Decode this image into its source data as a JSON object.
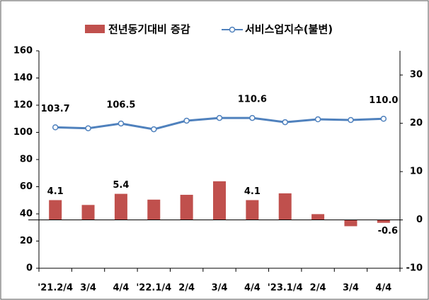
{
  "chart_data": {
    "type": "bar-line",
    "categories": [
      "'21.2/4",
      "3/4",
      "4/4",
      "'22.1/4",
      "2/4",
      "3/4",
      "4/4",
      "'23.1/4",
      "2/4",
      "3/4",
      "4/4"
    ],
    "series": [
      {
        "name": "전년동기대비 증감",
        "color": "#c0504d",
        "type": "bar",
        "axis": "y2",
        "values": [
          4.1,
          3.1,
          5.4,
          4.2,
          5.2,
          8.0,
          4.1,
          5.5,
          1.2,
          -1.3,
          -0.6
        ],
        "value_labels": [
          "4.1",
          null,
          "5.4",
          null,
          null,
          null,
          "4.1",
          null,
          null,
          null,
          "-0.6"
        ]
      },
      {
        "name": "서비스업지수(불변)",
        "color": "#4f81bd",
        "type": "line",
        "values": [
          103.7,
          103.0,
          106.5,
          102.3,
          108.6,
          110.6,
          110.6,
          107.5,
          109.6,
          109.1,
          110.0
        ],
        "value_labels": [
          "103.7",
          null,
          "106.5",
          null,
          null,
          null,
          "110.6",
          null,
          null,
          null,
          "110.0"
        ]
      }
    ],
    "ylim": [
      0,
      160
    ],
    "yticks": [
      0,
      20,
      40,
      60,
      80,
      100,
      120,
      140,
      160
    ],
    "y2lim": [
      -10,
      35
    ],
    "y2ticks": [
      -10,
      0,
      10,
      20,
      30
    ],
    "grid": false,
    "legend": "top"
  }
}
